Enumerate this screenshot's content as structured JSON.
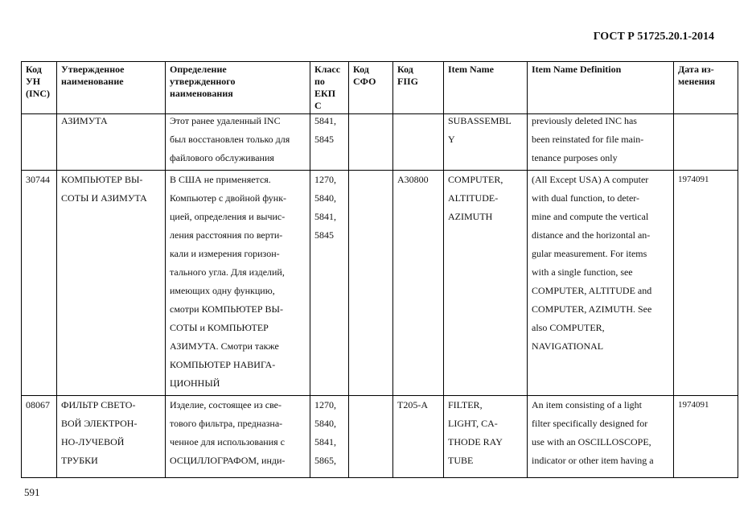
{
  "header": {
    "title": "ГОСТ Р 51725.20.1-2014"
  },
  "page_number": "591",
  "table": {
    "columns": [
      [
        "Код",
        "УН",
        "(INC)"
      ],
      [
        "Утвержденное",
        "наименование"
      ],
      [
        "Определение",
        "утвержденного",
        "наименования"
      ],
      [
        "Класс",
        "по",
        "ЕКП",
        "С"
      ],
      [
        "Код",
        "СФО"
      ],
      [
        "Код",
        "FIIG"
      ],
      [
        "Item Name"
      ],
      [
        "Item Name Definition"
      ],
      [
        "Дата из-",
        "менения"
      ]
    ],
    "rows": [
      {
        "cells": [
          [],
          [
            "АЗИМУТА"
          ],
          [
            "Этот ранее удаленный INC",
            "был восстановлен только для",
            "файлового обслуживания"
          ],
          [
            "5841,",
            "5845"
          ],
          [],
          [],
          [
            "SUBASSEMBL",
            "Y"
          ],
          [
            "previously deleted INC has",
            "been reinstated for file main-",
            "tenance purposes only"
          ],
          []
        ]
      },
      {
        "cells": [
          [
            "30744"
          ],
          [
            "КОМПЬЮТЕР ВЫ-",
            "СОТЫ И АЗИМУТА"
          ],
          [
            "В США не применяется.",
            "Компьютер с двойной функ-",
            "цией, определения и вычис-",
            "ления расстояния по верти-",
            "кали и измерения горизон-",
            "тального угла. Для изделий,",
            "имеющих одну функцию,",
            "смотри КОМПЬЮТЕР ВЫ-",
            "СОТЫ и КОМПЬЮТЕР",
            "АЗИМУТА. Смотри также",
            "КОМПЬЮТЕР НАВИГА-",
            "ЦИОННЫЙ"
          ],
          [
            "1270,",
            "5840,",
            "5841,",
            "5845"
          ],
          [],
          [
            "A30800"
          ],
          [
            "COMPUTER,",
            "ALTITUDE-",
            "AZIMUTH"
          ],
          [
            "(All Except USA) A computer",
            "with dual function, to deter-",
            "mine and compute the vertical",
            "distance and the horizontal an-",
            "gular measurement. For items",
            "with a single function, see",
            "COMPUTER, ALTITUDE and",
            "COMPUTER, AZIMUTH. See",
            "also COMPUTER,",
            "NAVIGATIONAL"
          ],
          [
            "1974091"
          ]
        ]
      },
      {
        "cells": [
          [
            "08067"
          ],
          [
            "ФИЛЬТР СВЕТО-",
            "ВОЙ ЭЛЕКТРОН-",
            "НО-ЛУЧЕВОЙ",
            "ТРУБКИ"
          ],
          [
            "Изделие, состоящее из све-",
            "тового фильтра, предназна-",
            "ченное для использования с",
            "ОСЦИЛЛОГРАФОМ, инди-"
          ],
          [
            "1270,",
            "5840,",
            "5841,",
            "5865,"
          ],
          [],
          [
            "T205-A"
          ],
          [
            "FILTER,",
            "LIGHT, CA-",
            "THODE RAY",
            "TUBE"
          ],
          [
            "An item consisting of a light",
            "filter specifically designed for",
            "use with an OSCILLOSCOPE,",
            "indicator or other item having a"
          ],
          [
            "1974091"
          ]
        ]
      }
    ]
  }
}
